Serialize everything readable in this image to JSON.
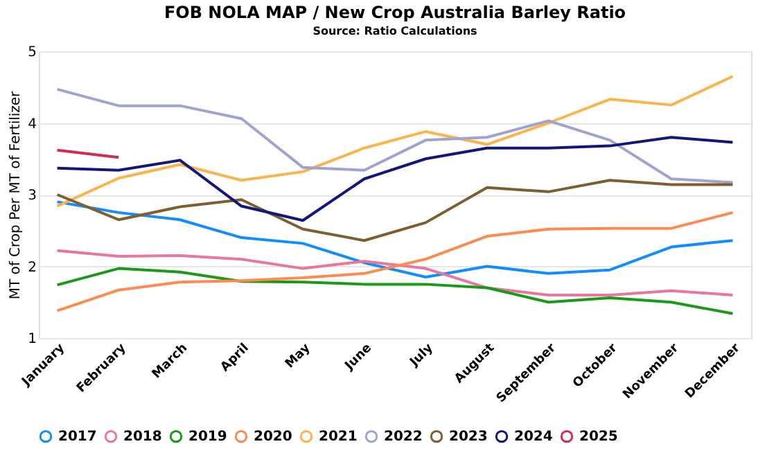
{
  "chart_data": {
    "type": "line",
    "title": "FOB NOLA MAP / New Crop Australia Barley Ratio",
    "subtitle": "Source: Ratio Calculations",
    "ylabel": "MT of Crop Per MT of Fertilizer",
    "categories": [
      "January",
      "February",
      "March",
      "April",
      "May",
      "June",
      "July",
      "August",
      "September",
      "October",
      "November",
      "December"
    ],
    "ylim": [
      1,
      5
    ],
    "yticks": [
      1,
      2,
      3,
      4,
      5
    ],
    "grid": "y",
    "legend": "bottom",
    "marker": "none",
    "line_style": "solid",
    "series": [
      {
        "name": "2017",
        "color": "#118dff",
        "values": [
          2.9,
          2.75,
          2.65,
          2.4,
          2.32,
          2.05,
          1.85,
          2.0,
          1.9,
          1.95,
          2.27,
          2.36
        ]
      },
      {
        "name": "2018",
        "color": "#e8779a",
        "values": [
          2.22,
          2.14,
          2.15,
          2.1,
          1.97,
          2.07,
          1.97,
          1.7,
          1.6,
          1.6,
          1.66,
          1.6
        ]
      },
      {
        "name": "2019",
        "color": "#1a9a1a",
        "values": [
          1.74,
          1.97,
          1.92,
          1.79,
          1.78,
          1.75,
          1.75,
          1.7,
          1.5,
          1.56,
          1.5,
          1.34
        ]
      },
      {
        "name": "2020",
        "color": "#ff8a50",
        "values": [
          1.38,
          1.67,
          1.78,
          1.8,
          1.84,
          1.9,
          2.1,
          2.42,
          2.52,
          2.53,
          2.53,
          2.75
        ]
      },
      {
        "name": "2021",
        "color": "#fbb44c",
        "values": [
          2.84,
          3.23,
          3.42,
          3.2,
          3.32,
          3.65,
          3.88,
          3.7,
          4.0,
          4.33,
          4.25,
          4.65
        ]
      },
      {
        "name": "2022",
        "color": "#a0a3d0",
        "values": [
          4.47,
          4.24,
          4.24,
          4.06,
          3.38,
          3.34,
          3.76,
          3.8,
          4.03,
          3.76,
          3.22,
          3.17
        ]
      },
      {
        "name": "2023",
        "color": "#7f5f2f",
        "values": [
          3.0,
          2.65,
          2.83,
          2.93,
          2.52,
          2.36,
          2.61,
          3.1,
          3.04,
          3.2,
          3.14,
          3.14
        ]
      },
      {
        "name": "2024",
        "color": "#12177a",
        "values": [
          3.37,
          3.34,
          3.48,
          2.84,
          2.64,
          3.22,
          3.5,
          3.65,
          3.65,
          3.68,
          3.8,
          3.73
        ]
      },
      {
        "name": "2025",
        "color": "#d42a54",
        "values": [
          3.62,
          3.52,
          null,
          null,
          null,
          null,
          null,
          null,
          null,
          null,
          null,
          null
        ]
      }
    ]
  }
}
